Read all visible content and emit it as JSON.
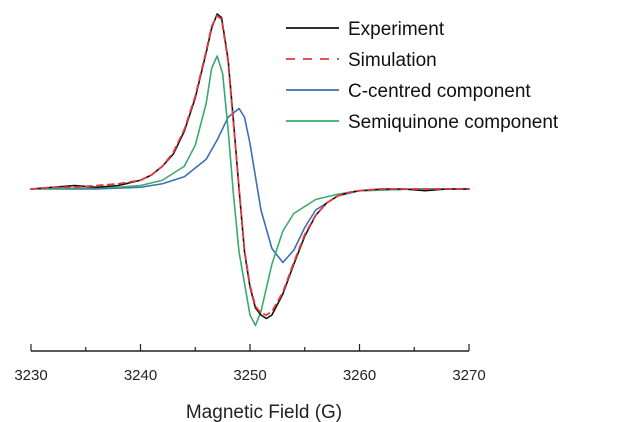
{
  "chart_data": {
    "type": "line",
    "xlabel": "Magnetic Field (G)",
    "ylabel": "",
    "xlim": [
      3230,
      3270
    ],
    "x_ticks": [
      "3230",
      "3240",
      "3250",
      "3260",
      "3270"
    ],
    "y_axis_visible": false,
    "grid": false,
    "legend_position": "top-right",
    "series": [
      {
        "name": "Experiment",
        "color": "#111111",
        "style": "solid",
        "points": [
          [
            3230,
            0.0
          ],
          [
            3232,
            0.01
          ],
          [
            3234,
            0.02
          ],
          [
            3236,
            0.01
          ],
          [
            3238,
            0.02
          ],
          [
            3240,
            0.05
          ],
          [
            3241,
            0.08
          ],
          [
            3242,
            0.13
          ],
          [
            3243,
            0.2
          ],
          [
            3244,
            0.33
          ],
          [
            3245,
            0.52
          ],
          [
            3246,
            0.78
          ],
          [
            3246.5,
            0.92
          ],
          [
            3247,
            1.0
          ],
          [
            3247.4,
            0.98
          ],
          [
            3248,
            0.74
          ],
          [
            3248.5,
            0.38
          ],
          [
            3249,
            0.0
          ],
          [
            3249.5,
            -0.36
          ],
          [
            3250,
            -0.56
          ],
          [
            3250.5,
            -0.68
          ],
          [
            3251,
            -0.72
          ],
          [
            3251.5,
            -0.74
          ],
          [
            3252,
            -0.72
          ],
          [
            3253,
            -0.6
          ],
          [
            3254,
            -0.43
          ],
          [
            3255,
            -0.27
          ],
          [
            3256,
            -0.15
          ],
          [
            3257,
            -0.08
          ],
          [
            3258,
            -0.04
          ],
          [
            3259,
            -0.02
          ],
          [
            3260,
            -0.01
          ],
          [
            3262,
            0.0
          ],
          [
            3264,
            0.0
          ],
          [
            3266,
            -0.01
          ],
          [
            3268,
            0.0
          ],
          [
            3270,
            0.0
          ]
        ]
      },
      {
        "name": "Simulation",
        "color": "#e8383d",
        "style": "dashed",
        "points": [
          [
            3230,
            0.0
          ],
          [
            3232,
            0.01
          ],
          [
            3234,
            0.01
          ],
          [
            3236,
            0.02
          ],
          [
            3238,
            0.03
          ],
          [
            3240,
            0.05
          ],
          [
            3241,
            0.08
          ],
          [
            3242,
            0.13
          ],
          [
            3243,
            0.21
          ],
          [
            3244,
            0.34
          ],
          [
            3245,
            0.53
          ],
          [
            3246,
            0.79
          ],
          [
            3246.5,
            0.93
          ],
          [
            3247,
            0.99
          ],
          [
            3247.4,
            0.97
          ],
          [
            3248,
            0.73
          ],
          [
            3248.5,
            0.37
          ],
          [
            3249,
            0.0
          ],
          [
            3249.5,
            -0.35
          ],
          [
            3250,
            -0.55
          ],
          [
            3250.5,
            -0.67
          ],
          [
            3251,
            -0.71
          ],
          [
            3251.5,
            -0.72
          ],
          [
            3252,
            -0.7
          ],
          [
            3253,
            -0.59
          ],
          [
            3254,
            -0.42
          ],
          [
            3255,
            -0.26
          ],
          [
            3256,
            -0.15
          ],
          [
            3257,
            -0.08
          ],
          [
            3258,
            -0.04
          ],
          [
            3259,
            -0.02
          ],
          [
            3260,
            -0.01
          ],
          [
            3262,
            0.0
          ],
          [
            3264,
            0.0
          ],
          [
            3266,
            0.0
          ],
          [
            3268,
            0.0
          ],
          [
            3270,
            0.0
          ]
        ]
      },
      {
        "name": "C-centred component",
        "color": "#3d6fb6",
        "style": "solid",
        "points": [
          [
            3230,
            0.0
          ],
          [
            3236,
            0.0
          ],
          [
            3240,
            0.01
          ],
          [
            3242,
            0.03
          ],
          [
            3244,
            0.07
          ],
          [
            3246,
            0.17
          ],
          [
            3247,
            0.28
          ],
          [
            3248,
            0.41
          ],
          [
            3249,
            0.46
          ],
          [
            3249.5,
            0.41
          ],
          [
            3250,
            0.26
          ],
          [
            3251,
            -0.12
          ],
          [
            3252,
            -0.34
          ],
          [
            3253,
            -0.42
          ],
          [
            3254,
            -0.35
          ],
          [
            3255,
            -0.22
          ],
          [
            3256,
            -0.12
          ],
          [
            3258,
            -0.04
          ],
          [
            3260,
            -0.01
          ],
          [
            3265,
            0.0
          ],
          [
            3270,
            0.0
          ]
        ]
      },
      {
        "name": "Semiquinone component",
        "color": "#3aab6b",
        "style": "solid",
        "points": [
          [
            3230,
            0.0
          ],
          [
            3238,
            0.01
          ],
          [
            3240,
            0.02
          ],
          [
            3242,
            0.05
          ],
          [
            3244,
            0.13
          ],
          [
            3245,
            0.25
          ],
          [
            3246,
            0.49
          ],
          [
            3246.5,
            0.69
          ],
          [
            3247,
            0.76
          ],
          [
            3247.5,
            0.66
          ],
          [
            3248,
            0.34
          ],
          [
            3248.5,
            -0.04
          ],
          [
            3249,
            -0.36
          ],
          [
            3250,
            -0.72
          ],
          [
            3250.5,
            -0.78
          ],
          [
            3251,
            -0.7
          ],
          [
            3252,
            -0.43
          ],
          [
            3253,
            -0.24
          ],
          [
            3254,
            -0.14
          ],
          [
            3256,
            -0.06
          ],
          [
            3258,
            -0.03
          ],
          [
            3260,
            -0.01
          ],
          [
            3265,
            0.0
          ],
          [
            3270,
            0.0
          ]
        ]
      }
    ]
  }
}
